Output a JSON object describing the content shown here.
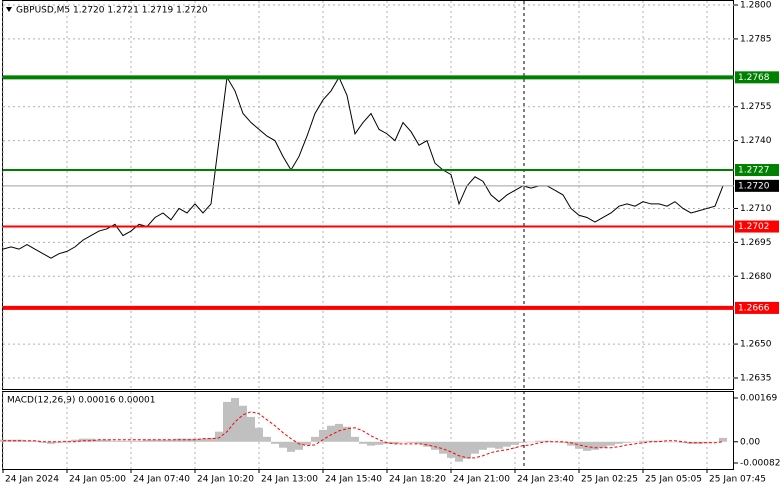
{
  "chart_data": [
    {
      "type": "line",
      "title": "GBPUSD,M5  1.2720 1.2721 1.2719 1.2720",
      "categories": [
        "24 Jan 2024",
        null,
        null,
        null,
        null,
        null,
        null,
        null,
        "24 Jan 05:00",
        null,
        null,
        null,
        null,
        null,
        null,
        null,
        "24 Jan 07:40",
        null,
        null,
        null,
        null,
        null,
        null,
        null,
        "24 Jan 10:20",
        null,
        null,
        null,
        null,
        null,
        null,
        null,
        "24 Jan 13:00",
        null,
        null,
        null,
        null,
        null,
        null,
        null,
        "24 Jan 15:40",
        null,
        null,
        null,
        null,
        null,
        null,
        null,
        "24 Jan 18:20",
        null,
        null,
        null,
        null,
        null,
        null,
        null,
        "24 Jan 21:00",
        null,
        null,
        null,
        null,
        null,
        null,
        null,
        "24 Jan 23:40",
        null,
        null,
        null,
        null,
        null,
        null,
        null,
        "25 Jan 02:25",
        null,
        null,
        null,
        null,
        null,
        null,
        null,
        "25 Jan 05:05",
        null,
        null,
        null,
        null,
        null,
        null,
        null,
        "25 Jan 07:45",
        null,
        null
      ],
      "series": [
        {
          "color": "#000000",
          "values": [
            1.2692,
            1.2693,
            1.2692,
            1.2694,
            1.2692,
            1.269,
            1.2688,
            1.269,
            1.2691,
            1.2693,
            1.2696,
            1.2698,
            1.27,
            1.2701,
            1.2703,
            1.2698,
            1.27,
            1.2703,
            1.2702,
            1.2706,
            1.2708,
            1.2705,
            1.271,
            1.2708,
            1.2712,
            1.2708,
            1.2712,
            1.274,
            1.2768,
            1.2762,
            1.2752,
            1.2748,
            1.2745,
            1.2742,
            1.274,
            1.2733,
            1.2727,
            1.2733,
            1.2742,
            1.2752,
            1.2758,
            1.2762,
            1.2768,
            1.276,
            1.2743,
            1.2748,
            1.2752,
            1.2745,
            1.2743,
            1.274,
            1.2748,
            1.2744,
            1.2738,
            1.274,
            1.273,
            1.2727,
            1.2725,
            1.2712,
            1.272,
            1.2724,
            1.2722,
            1.2716,
            1.2713,
            1.2716,
            1.2718,
            1.272,
            1.2719,
            1.272,
            1.272,
            1.2718,
            1.2716,
            1.271,
            1.2707,
            1.2706,
            1.2704,
            1.2706,
            1.2708,
            1.2711,
            1.2712,
            1.2711,
            1.2713,
            1.2712,
            1.2712,
            1.2711,
            1.2713,
            1.271,
            1.2708,
            1.2709,
            1.271,
            1.2711,
            1.272
          ]
        }
      ],
      "ylim": [
        1.2635,
        1.28
      ],
      "yticks": [
        {
          "value": 1.28,
          "label": "1.2800"
        },
        1.2785,
        1.2755,
        {
          "value": 1.274,
          "label": "1.2740"
        },
        {
          "value": 1.271,
          "label": "1.2710"
        },
        1.2695,
        {
          "value": 1.268,
          "label": "1.2680"
        },
        {
          "value": 1.265,
          "label": "1.2650"
        },
        1.2635
      ],
      "grid": true,
      "levels": [
        {
          "value": 1.2768,
          "label": "1.2768",
          "color": "#008000",
          "thick": true
        },
        {
          "value": 1.2727,
          "label": "1.2727",
          "color": "#008000",
          "thick": false
        },
        {
          "value": 1.2702,
          "label": "1.2702",
          "color": "#ff0000",
          "thick": false
        },
        {
          "value": 1.2666,
          "label": "1.2666",
          "color": "#ff0000",
          "thick": true
        }
      ],
      "current": {
        "value": 1.272,
        "label": "1.2720",
        "color": "#000000"
      }
    },
    {
      "type": "bar",
      "title": "MACD(12,26,9) 0.00016 0.00001",
      "series": [
        {
          "type": "bar",
          "color": "#c0c0c0",
          "values": [
            8e-05,
            8e-05,
            8e-05,
            4e-05,
            4e-05,
            -4e-05,
            -8e-05,
            -4e-05,
            4e-05,
            8e-05,
            0.00012,
            0.00012,
            8e-05,
            8e-05,
            4e-05,
            4e-05,
            4e-05,
            4e-05,
            8e-05,
            8e-05,
            8e-05,
            8e-05,
            0.00012,
            0.00012,
            0.00012,
            0.00012,
            0.00015,
            0.00039,
            0.00154,
            0.00169,
            0.00139,
            0.00096,
            0.00054,
            0.00019,
            -8e-05,
            -0.00023,
            -0.00039,
            -0.00031,
            -0.00012,
            0.00019,
            0.00046,
            0.00062,
            0.00069,
            0.00058,
            0.00019,
            -8e-05,
            -0.00015,
            -0.00012,
            -8e-05,
            -8e-05,
            0,
            -4e-05,
            -8e-05,
            -0.00019,
            -0.00031,
            -0.00046,
            -0.00062,
            -0.00077,
            -0.00065,
            -0.00046,
            -0.00031,
            -0.00023,
            -0.00027,
            -0.00019,
            -0.00012,
            -4e-05,
            0,
            4e-05,
            4e-05,
            0,
            -4e-05,
            -0.00015,
            -0.00027,
            -0.00035,
            -0.00031,
            -0.00023,
            -0.00015,
            -8e-05,
            -4e-05,
            0,
            4e-05,
            4e-05,
            4e-05,
            0,
            0,
            -4e-05,
            -8e-05,
            -8e-05,
            -4e-05,
            0,
            0.00015
          ]
        },
        {
          "type": "line",
          "color": "#ff0000",
          "values": [
            4e-05,
            4e-05,
            4e-05,
            4e-05,
            4e-05,
            0,
            0,
            0,
            0,
            0,
            4e-05,
            4e-05,
            8e-05,
            8e-05,
            8e-05,
            8e-05,
            8e-05,
            8e-05,
            8e-05,
            8e-05,
            8e-05,
            8e-05,
            8e-05,
            8e-05,
            8e-05,
            0.00012,
            0.00012,
            0.00015,
            0.00039,
            0.00077,
            0.00104,
            0.00116,
            0.00108,
            0.00085,
            0.00062,
            0.00035,
            0.00012,
            -8e-05,
            -0.00015,
            -0.00012,
            8e-05,
            0.00027,
            0.00042,
            0.0005,
            0.00054,
            0.00042,
            0.00023,
            8e-05,
            -4e-05,
            -8e-05,
            -8e-05,
            -8e-05,
            -8e-05,
            -0.00012,
            -0.00019,
            -0.00027,
            -0.00039,
            -0.00054,
            -0.00062,
            -0.00062,
            -0.00054,
            -0.00042,
            -0.00035,
            -0.00031,
            -0.00023,
            -0.00015,
            -0.00012,
            -4e-05,
            0,
            0,
            0,
            -4e-05,
            -0.00012,
            -0.00019,
            -0.00023,
            -0.00023,
            -0.00023,
            -0.00019,
            -0.00012,
            -8e-05,
            -4e-05,
            0,
            0,
            4e-05,
            4e-05,
            0,
            -4e-05,
            -4e-05,
            -4e-05,
            -4e-05,
            0
          ]
        }
      ],
      "ylim": [
        -0.00082,
        0.00169
      ],
      "yticks": [
        0.00169,
        {
          "value": 0,
          "label": "0.00"
        },
        -0.00082
      ]
    }
  ]
}
